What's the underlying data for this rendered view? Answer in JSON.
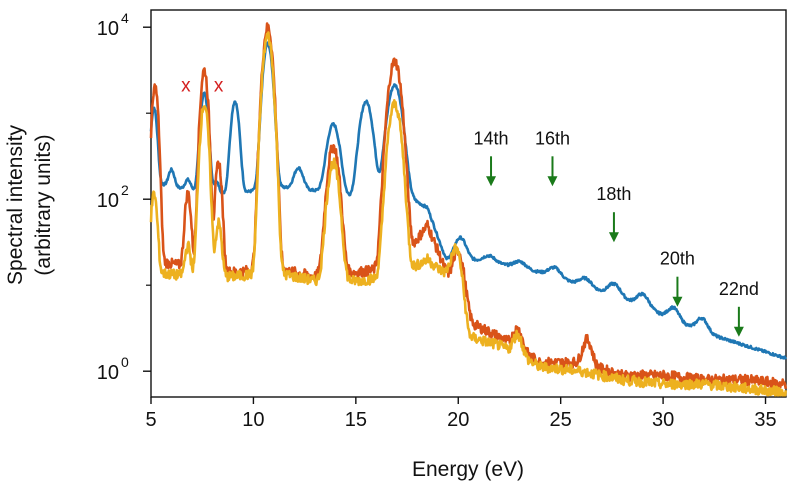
{
  "chart_data": {
    "type": "line",
    "title": "",
    "xlabel": "Energy (eV)",
    "ylabel_line1": "Spectral intensity",
    "ylabel_line2": "(arbitrary units)",
    "xlim": [
      5,
      36
    ],
    "ylim_log10": [
      -0.3,
      4.2
    ],
    "yscale": "log",
    "x_ticks": [
      {
        "value": 5,
        "label": "5"
      },
      {
        "value": 10,
        "label": "10"
      },
      {
        "value": 15,
        "label": "15"
      },
      {
        "value": 20,
        "label": "20"
      },
      {
        "value": 25,
        "label": "25"
      },
      {
        "value": 30,
        "label": "30"
      },
      {
        "value": 35,
        "label": "35"
      }
    ],
    "y_ticks": [
      {
        "exp": 0,
        "base": "10",
        "sup": "0"
      },
      {
        "exp": 2,
        "base": "10",
        "sup": "2"
      },
      {
        "exp": 4,
        "base": "10",
        "sup": "4"
      }
    ],
    "series": [
      {
        "name": "series-blue",
        "color": "#1f77b4",
        "peaks": [
          [
            5.15,
            3.0,
            0.12
          ],
          [
            6.0,
            1.9,
            0.13
          ],
          [
            6.8,
            1.6,
            0.13
          ],
          [
            7.6,
            3.2,
            0.15
          ],
          [
            8.2,
            1.6,
            0.12
          ],
          [
            9.1,
            3.1,
            0.16
          ],
          [
            10.7,
            3.8,
            0.18
          ],
          [
            12.2,
            2.0,
            0.2
          ],
          [
            13.9,
            2.8,
            0.25
          ],
          [
            15.5,
            3.1,
            0.25
          ],
          [
            16.9,
            3.3,
            0.28
          ],
          [
            20.1,
            1.2,
            0.25
          ],
          [
            21.5,
            0.55,
            0.28
          ],
          [
            23.0,
            0.48,
            0.28
          ],
          [
            24.7,
            0.55,
            0.28
          ],
          [
            26.2,
            0.38,
            0.28
          ],
          [
            27.6,
            0.45,
            0.28
          ],
          [
            29.0,
            0.35,
            0.28
          ],
          [
            30.5,
            0.18,
            0.25
          ],
          [
            31.9,
            0.1,
            0.25
          ]
        ],
        "baseline_points": [
          [
            5,
            2.2
          ],
          [
            7,
            2.1
          ],
          [
            9,
            2.05
          ],
          [
            11,
            2.15
          ],
          [
            13,
            2.1
          ],
          [
            15,
            2.0
          ],
          [
            17,
            2.1
          ],
          [
            18.5,
            1.9
          ],
          [
            19.4,
            1.3
          ],
          [
            20.5,
            1.3
          ],
          [
            22,
            1.25
          ],
          [
            24,
            1.15
          ],
          [
            26,
            1.0
          ],
          [
            28,
            0.85
          ],
          [
            30,
            0.65
          ],
          [
            32,
            0.45
          ],
          [
            34,
            0.3
          ],
          [
            36,
            0.15
          ]
        ],
        "noise": 0.015
      },
      {
        "name": "series-orange",
        "color": "#d95319",
        "peaks": [
          [
            5.2,
            3.3,
            0.12
          ],
          [
            6.8,
            2.0,
            0.12
          ],
          [
            7.6,
            3.5,
            0.14
          ],
          [
            8.3,
            2.4,
            0.12
          ],
          [
            10.7,
            4.0,
            0.18
          ],
          [
            13.9,
            2.6,
            0.22
          ],
          [
            16.9,
            3.6,
            0.24
          ],
          [
            20.0,
            1.25,
            0.22
          ],
          [
            22.9,
            0.1,
            0.2
          ],
          [
            26.3,
            0.05,
            0.2
          ]
        ],
        "baseline_points": [
          [
            5,
            1.3
          ],
          [
            7,
            1.2
          ],
          [
            9,
            1.15
          ],
          [
            11,
            1.2
          ],
          [
            13,
            1.1
          ],
          [
            15,
            1.15
          ],
          [
            17,
            1.2
          ],
          [
            18.5,
            1.7
          ],
          [
            19.5,
            1.1
          ],
          [
            20.7,
            0.55
          ],
          [
            22,
            0.4
          ],
          [
            24,
            0.1
          ],
          [
            26,
            0.1
          ],
          [
            28,
            -0.05
          ],
          [
            30,
            -0.05
          ],
          [
            32,
            -0.1
          ],
          [
            34,
            -0.1
          ],
          [
            36,
            -0.15
          ]
        ],
        "noise": 0.06
      },
      {
        "name": "series-yellow",
        "color": "#edb120",
        "peaks": [
          [
            5.15,
            2.0,
            0.12
          ],
          [
            6.8,
            1.2,
            0.12
          ],
          [
            7.6,
            3.1,
            0.15
          ],
          [
            8.3,
            1.6,
            0.12
          ],
          [
            10.7,
            3.9,
            0.18
          ],
          [
            13.9,
            2.4,
            0.22
          ],
          [
            16.9,
            3.1,
            0.24
          ],
          [
            19.9,
            1.3,
            0.22
          ],
          [
            22.9,
            0.05,
            0.2
          ]
        ],
        "baseline_points": [
          [
            5,
            1.15
          ],
          [
            7,
            1.1
          ],
          [
            9,
            1.1
          ],
          [
            11,
            1.15
          ],
          [
            13,
            1.05
          ],
          [
            15,
            1.05
          ],
          [
            17,
            1.1
          ],
          [
            18.5,
            1.3
          ],
          [
            19.5,
            1.1
          ],
          [
            20.5,
            0.4
          ],
          [
            22,
            0.3
          ],
          [
            24,
            0.05
          ],
          [
            26,
            0.0
          ],
          [
            28,
            -0.1
          ],
          [
            30,
            -0.15
          ],
          [
            32,
            -0.15
          ],
          [
            34,
            -0.2
          ],
          [
            36,
            -0.25
          ]
        ],
        "noise": 0.06
      }
    ],
    "annotations": [
      {
        "label": "14th",
        "x": 21.6,
        "y_log": 2.15,
        "color": "#1a7a1a"
      },
      {
        "label": "16th",
        "x": 24.6,
        "y_log": 2.15,
        "color": "#1a7a1a"
      },
      {
        "label": "18th",
        "x": 27.6,
        "y_log": 1.5,
        "color": "#1a7a1a"
      },
      {
        "label": "20th",
        "x": 30.7,
        "y_log": 0.75,
        "color": "#1a7a1a"
      },
      {
        "label": "22nd",
        "x": 33.7,
        "y_log": 0.4,
        "color": "#1a7a1a"
      }
    ],
    "x_markers": [
      {
        "label": "x",
        "x": 6.7,
        "y_log": 3.25
      },
      {
        "label": "x",
        "x": 8.3,
        "y_log": 3.25
      }
    ]
  }
}
